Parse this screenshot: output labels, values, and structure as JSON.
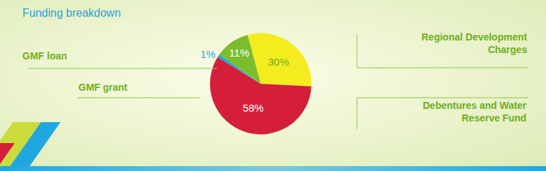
{
  "chart_data": {
    "type": "pie",
    "title": "Funding breakdown",
    "categories": [
      "Regional Development Charges",
      "Debentures and Water Reserve Fund",
      "GMF grant",
      "GMF loan"
    ],
    "values": [
      30,
      58,
      1,
      11
    ],
    "value_labels": [
      "30%",
      "58%",
      "1%",
      "11%"
    ],
    "colors": [
      "#f4ec1f",
      "#d51f3a",
      "#1fa8df",
      "#7cbd2e"
    ],
    "data_labels": true
  }
}
